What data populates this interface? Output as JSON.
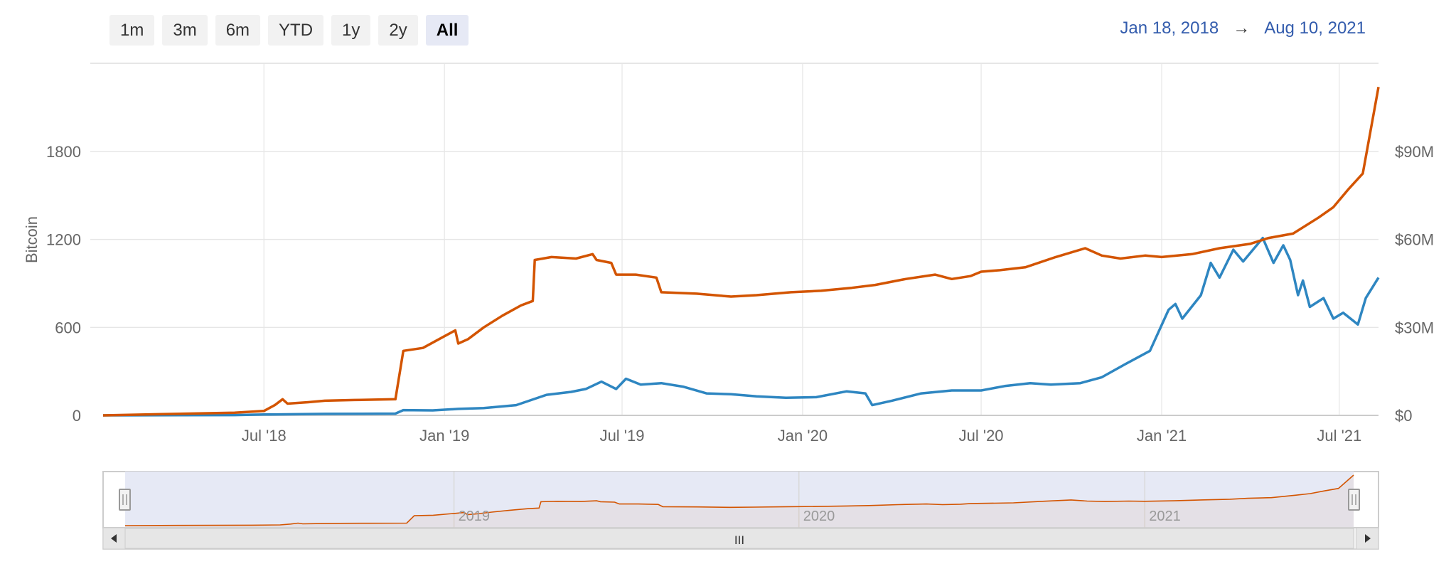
{
  "range_selector": {
    "buttons": [
      "1m",
      "3m",
      "6m",
      "YTD",
      "1y",
      "2y",
      "All"
    ],
    "selected": "All"
  },
  "date_range": {
    "from": "Jan 18, 2018",
    "arrow": "→",
    "to": "Aug 10, 2021"
  },
  "chart_data": {
    "type": "line",
    "y_axis_left": {
      "label": "Bitcoin",
      "ticks": [
        "0",
        "600",
        "1200",
        "1800"
      ],
      "range": [
        0,
        1800
      ]
    },
    "y_axis_right": {
      "label": "",
      "ticks": [
        "$0",
        "$30M",
        "$60M",
        "$90M"
      ],
      "range": [
        0,
        90000000
      ]
    },
    "x_axis": {
      "ticks": [
        "Jul '18",
        "Jan '19",
        "Jul '19",
        "Jan '20",
        "Jul '20",
        "Jan '21",
        "Jul '21"
      ],
      "range": [
        "2018-01-18",
        "2021-08-10"
      ]
    },
    "grid": true,
    "series": [
      {
        "axis": "left",
        "color": "#d35400",
        "points": [
          [
            "2018-01-18",
            0
          ],
          [
            "2018-03-15",
            8
          ],
          [
            "2018-06-01",
            18
          ],
          [
            "2018-07-01",
            30
          ],
          [
            "2018-07-12",
            70
          ],
          [
            "2018-07-20",
            110
          ],
          [
            "2018-07-25",
            80
          ],
          [
            "2018-08-15",
            90
          ],
          [
            "2018-09-01",
            100
          ],
          [
            "2018-10-01",
            105
          ],
          [
            "2018-11-12",
            110
          ],
          [
            "2018-11-20",
            440
          ],
          [
            "2018-12-10",
            460
          ],
          [
            "2019-01-01",
            540
          ],
          [
            "2019-01-12",
            580
          ],
          [
            "2019-01-15",
            490
          ],
          [
            "2019-01-25",
            520
          ],
          [
            "2019-02-10",
            600
          ],
          [
            "2019-03-01",
            680
          ],
          [
            "2019-03-20",
            750
          ],
          [
            "2019-04-01",
            780
          ],
          [
            "2019-04-03",
            1060
          ],
          [
            "2019-04-20",
            1080
          ],
          [
            "2019-05-15",
            1070
          ],
          [
            "2019-06-01",
            1100
          ],
          [
            "2019-06-05",
            1060
          ],
          [
            "2019-06-20",
            1040
          ],
          [
            "2019-06-25",
            960
          ],
          [
            "2019-07-15",
            960
          ],
          [
            "2019-08-05",
            940
          ],
          [
            "2019-08-10",
            840
          ],
          [
            "2019-09-15",
            830
          ],
          [
            "2019-10-20",
            810
          ],
          [
            "2019-11-15",
            820
          ],
          [
            "2019-12-20",
            840
          ],
          [
            "2020-01-20",
            850
          ],
          [
            "2020-02-20",
            870
          ],
          [
            "2020-03-15",
            890
          ],
          [
            "2020-04-15",
            930
          ],
          [
            "2020-05-15",
            960
          ],
          [
            "2020-06-01",
            930
          ],
          [
            "2020-06-20",
            950
          ],
          [
            "2020-07-01",
            980
          ],
          [
            "2020-07-20",
            990
          ],
          [
            "2020-08-15",
            1010
          ],
          [
            "2020-09-15",
            1080
          ],
          [
            "2020-10-15",
            1140
          ],
          [
            "2020-11-01",
            1090
          ],
          [
            "2020-11-20",
            1070
          ],
          [
            "2020-12-15",
            1090
          ],
          [
            "2021-01-01",
            1080
          ],
          [
            "2021-02-01",
            1100
          ],
          [
            "2021-03-01",
            1140
          ],
          [
            "2021-04-01",
            1170
          ],
          [
            "2021-04-20",
            1210
          ],
          [
            "2021-05-15",
            1240
          ],
          [
            "2021-06-10",
            1350
          ],
          [
            "2021-06-25",
            1420
          ],
          [
            "2021-07-10",
            1540
          ],
          [
            "2021-07-25",
            1650
          ],
          [
            "2021-08-10",
            2240
          ]
        ]
      },
      {
        "axis": "right",
        "color": "#2e86c1",
        "points": [
          [
            "2018-01-18",
            0
          ],
          [
            "2018-06-01",
            100000
          ],
          [
            "2018-07-01",
            300000
          ],
          [
            "2018-09-01",
            500000
          ],
          [
            "2018-11-12",
            600000
          ],
          [
            "2018-11-20",
            1800000
          ],
          [
            "2018-12-20",
            1700000
          ],
          [
            "2019-01-15",
            2200000
          ],
          [
            "2019-02-10",
            2500000
          ],
          [
            "2019-03-15",
            3500000
          ],
          [
            "2019-04-15",
            7000000
          ],
          [
            "2019-05-10",
            8000000
          ],
          [
            "2019-05-25",
            9000000
          ],
          [
            "2019-06-10",
            11500000
          ],
          [
            "2019-06-25",
            9000000
          ],
          [
            "2019-07-05",
            12500000
          ],
          [
            "2019-07-20",
            10500000
          ],
          [
            "2019-08-10",
            11000000
          ],
          [
            "2019-09-01",
            9800000
          ],
          [
            "2019-09-25",
            7500000
          ],
          [
            "2019-10-20",
            7200000
          ],
          [
            "2019-11-15",
            6500000
          ],
          [
            "2019-12-15",
            6000000
          ],
          [
            "2020-01-15",
            6200000
          ],
          [
            "2020-02-15",
            8200000
          ],
          [
            "2020-03-05",
            7500000
          ],
          [
            "2020-03-12",
            3500000
          ],
          [
            "2020-04-01",
            5000000
          ],
          [
            "2020-05-01",
            7500000
          ],
          [
            "2020-06-01",
            8500000
          ],
          [
            "2020-07-01",
            8500000
          ],
          [
            "2020-07-25",
            10000000
          ],
          [
            "2020-08-20",
            11000000
          ],
          [
            "2020-09-10",
            10500000
          ],
          [
            "2020-10-10",
            11000000
          ],
          [
            "2020-11-01",
            13000000
          ],
          [
            "2020-11-25",
            17500000
          ],
          [
            "2020-12-20",
            22000000
          ],
          [
            "2021-01-08",
            36000000
          ],
          [
            "2021-01-15",
            38000000
          ],
          [
            "2021-01-22",
            33000000
          ],
          [
            "2021-02-10",
            41000000
          ],
          [
            "2021-02-20",
            52000000
          ],
          [
            "2021-03-01",
            47000000
          ],
          [
            "2021-03-15",
            56500000
          ],
          [
            "2021-03-25",
            52500000
          ],
          [
            "2021-04-14",
            60500000
          ],
          [
            "2021-04-25",
            52000000
          ],
          [
            "2021-05-05",
            58000000
          ],
          [
            "2021-05-12",
            53000000
          ],
          [
            "2021-05-20",
            41000000
          ],
          [
            "2021-05-25",
            46000000
          ],
          [
            "2021-06-01",
            37000000
          ],
          [
            "2021-06-15",
            40000000
          ],
          [
            "2021-06-25",
            33000000
          ],
          [
            "2021-07-05",
            35000000
          ],
          [
            "2021-07-20",
            31000000
          ],
          [
            "2021-07-28",
            40000000
          ],
          [
            "2021-08-10",
            47000000
          ]
        ]
      }
    ],
    "navigator": {
      "labels": [
        "2019",
        "2020",
        "2021"
      ],
      "scrollbar_glyph": "III"
    }
  }
}
